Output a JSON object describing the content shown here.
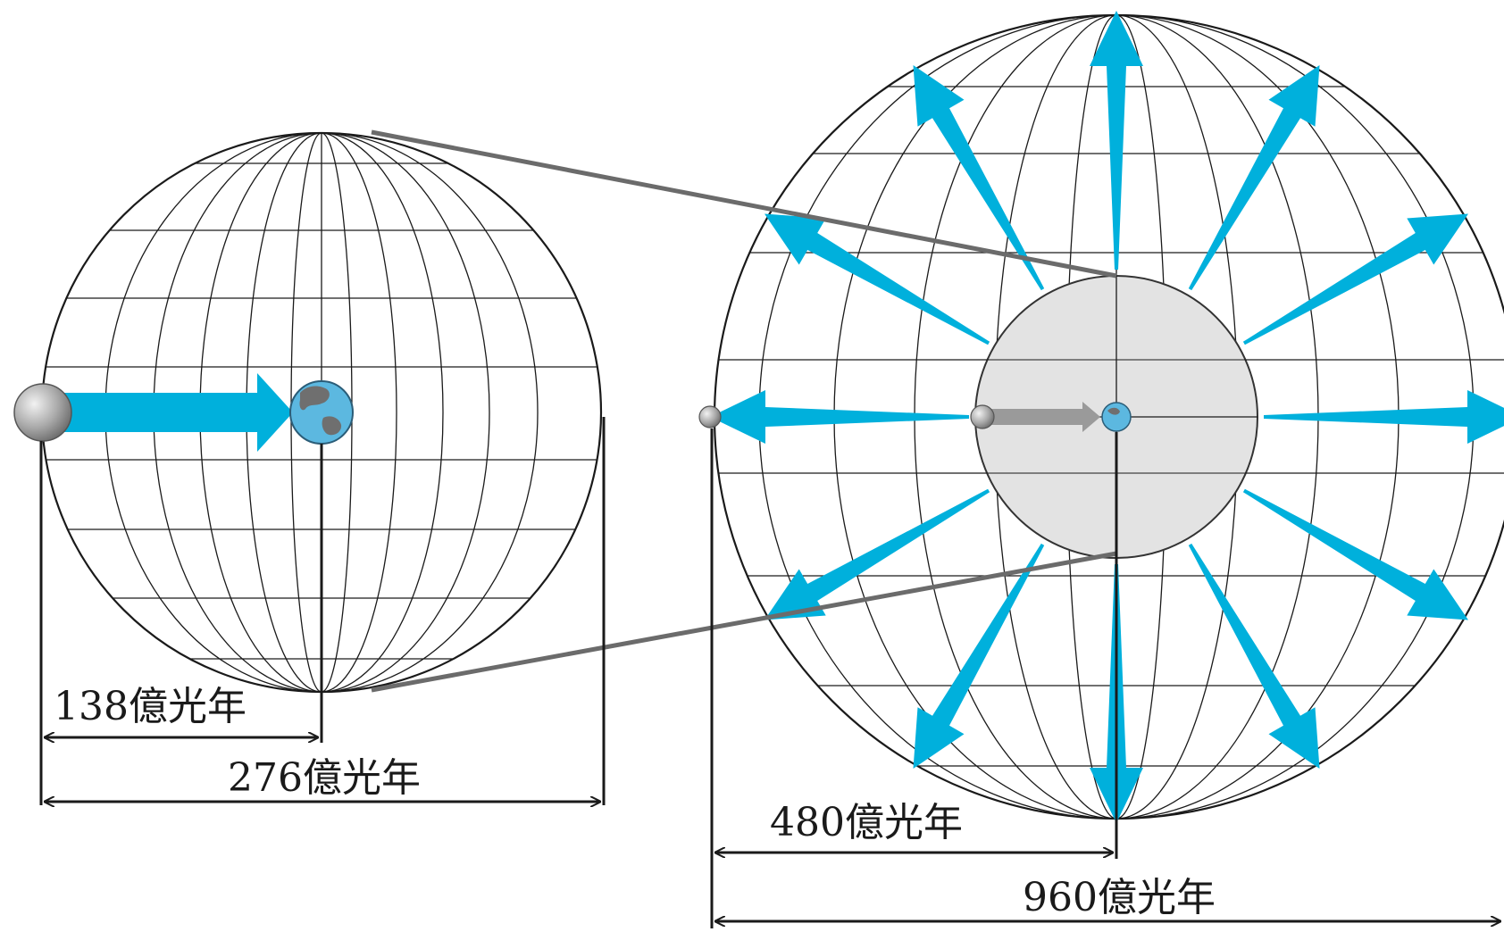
{
  "labels": {
    "small_radius": "138億光年",
    "small_diameter": "276億光年",
    "large_radius": "480億光年",
    "large_diameter": "960億光年"
  },
  "colors": {
    "expansion_arrow": "#00b0dc",
    "inner_sphere_fill": "#e3e3e3",
    "grid_line": "#1a1a1a",
    "connector_line": "#6b6b6b",
    "earth": "#5cb8e0",
    "source_sphere": "#9a9a9a"
  },
  "icons": {
    "earth": "earth-globe-icon",
    "source": "gray-sphere-icon"
  }
}
